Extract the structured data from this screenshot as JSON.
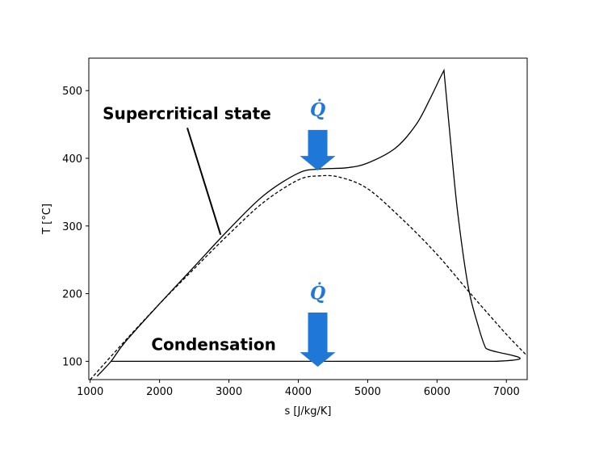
{
  "chart_data": {
    "type": "line",
    "xlabel": "s [J/kg/K]",
    "ylabel": "T [°C]",
    "xlim": [
      980,
      7300
    ],
    "ylim": [
      73,
      548
    ],
    "xticks": [
      {
        "value": 1000,
        "label": "1000"
      },
      {
        "value": 2000,
        "label": "2000"
      },
      {
        "value": 3000,
        "label": "3000"
      },
      {
        "value": 4000,
        "label": "4000"
      },
      {
        "value": 5000,
        "label": "5000"
      },
      {
        "value": 6000,
        "label": "6000"
      },
      {
        "value": 7000,
        "label": "7000"
      }
    ],
    "yticks": [
      {
        "value": 100,
        "label": "100"
      },
      {
        "value": 200,
        "label": "200"
      },
      {
        "value": 300,
        "label": "300"
      },
      {
        "value": 400,
        "label": "400"
      },
      {
        "value": 500,
        "label": "500"
      }
    ],
    "grid": false,
    "series": [
      {
        "style": "dashed",
        "color": "#000000",
        "x": [
          1000,
          1500,
          2000,
          2500,
          3000,
          3500,
          4000,
          4300,
          4600,
          5000,
          5500,
          6000,
          6500,
          7000,
          7300
        ],
        "y": [
          73,
          130,
          185,
          237,
          288,
          335,
          368,
          374,
          372,
          355,
          310,
          258,
          198,
          140,
          108
        ]
      },
      {
        "style": "solid",
        "color": "#000000",
        "x": [
          1100,
          1300,
          1500,
          2000,
          2500,
          3000,
          3500,
          4000,
          4300,
          4700,
          5000,
          5400,
          5700,
          5900,
          6050,
          6100,
          6200,
          6300,
          6450,
          6600,
          6700,
          6820,
          1300
        ],
        "y": [
          78,
          100,
          128,
          185,
          240,
          295,
          345,
          378,
          384,
          386,
          393,
          415,
          450,
          488,
          520,
          530,
          420,
          318,
          210,
          150,
          120,
          100,
          100
        ]
      }
    ],
    "annotations": [
      {
        "text": "Supercritical state",
        "x": 1180,
        "y": 466,
        "pointer_from": [
          2400,
          445
        ],
        "pointer_to": [
          2880,
          287
        ]
      },
      {
        "text": "Condensation",
        "x": 1880,
        "y": 125
      }
    ],
    "heat_arrows": [
      {
        "label": "Q̇",
        "x": 4280,
        "label_y": 472,
        "y_top": 442,
        "y_tip": 382,
        "color": "#1f77d8"
      },
      {
        "label": "Q̇",
        "x": 4280,
        "label_y": 201,
        "y_top": 172,
        "y_tip": 92,
        "color": "#1f77d8"
      }
    ]
  }
}
